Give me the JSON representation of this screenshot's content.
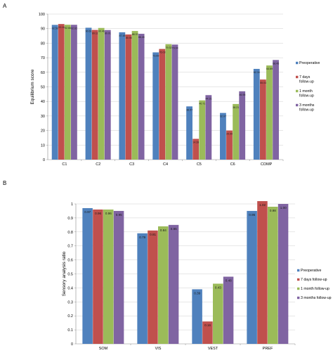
{
  "colors": {
    "preop": "#4f81bd",
    "d7": "#c0504d",
    "m1": "#9bbb59",
    "m3": "#8064a2",
    "grid": "#cfcfcf",
    "axis": "#8c8c8c"
  },
  "chart_data": [
    {
      "panel": "A",
      "type": "bar",
      "ylabel": "Equilibrium score",
      "ylim": [
        0,
        100
      ],
      "yticks": [
        "0",
        "10",
        "20",
        "30",
        "40",
        "50",
        "60",
        "70",
        "80",
        "90",
        "100"
      ],
      "categories": [
        "C1",
        "C2",
        "C3",
        "C4",
        "C5",
        "C6",
        "COMP"
      ],
      "legend": [
        "Preoperative",
        "7 days follow-up",
        "1 month follow-up",
        "3 months follow-up"
      ],
      "series": [
        {
          "name": "Preoperative",
          "values": [
            92.56,
            90.61,
            87.48,
            73.69,
            36.57,
            32.07,
            62.34
          ],
          "labels": [
            "92.56",
            "90.61",
            "87.48",
            "73.69",
            "36.57",
            "32.07",
            "62.34"
          ]
        },
        {
          "name": "7 days follow-up",
          "values": [
            93.16,
            89.11,
            85.98,
            76.03,
            14.28,
            20.0,
            55.03
          ],
          "labels": [
            "93.16",
            "89.11",
            "85.98",
            "76.03",
            "14.28",
            "20.00",
            "55.03"
          ]
        },
        {
          "name": "1 month follow-up",
          "values": [
            92.66,
            90.46,
            88.37,
            79.32,
            40.71,
            38.21,
            64.69
          ],
          "labels": [
            "92.66",
            "90.46",
            "88.37",
            "79.32",
            "40.71",
            "38.21",
            "64.69"
          ]
        },
        {
          "name": "3 months follow-up",
          "values": [
            92.62,
            89.01,
            86.45,
            79.04,
            44.31,
            46.95,
            68.45
          ],
          "labels": [
            "92.62",
            "89.01",
            "86.45",
            "79.04",
            "44.31",
            "46.95",
            "68.45"
          ]
        }
      ]
    },
    {
      "panel": "B",
      "type": "bar",
      "ylabel": "Sensory analysis ratio",
      "ylim": [
        0,
        1
      ],
      "yticks": [
        "0",
        "0.1",
        "0.2",
        "0.3",
        "0.4",
        "0.5",
        "0.6",
        "0.7",
        "0.8",
        "0.9",
        "1"
      ],
      "categories": [
        "SOM",
        "VIS",
        "VEST",
        "PREF"
      ],
      "legend": [
        "Preoperative",
        "7 days follow-up",
        "1 month follow-up",
        "3 months follow-up"
      ],
      "series": [
        {
          "name": "Preoperative",
          "values": [
            0.97,
            0.79,
            0.39,
            0.95
          ],
          "labels": [
            "0.97",
            "0.79",
            "0.39",
            "0.95"
          ]
        },
        {
          "name": "7 days follow-up",
          "values": [
            0.96,
            0.81,
            0.16,
            1.02
          ],
          "labels": [
            "0.96",
            "0.81",
            "0.16",
            "1.02"
          ]
        },
        {
          "name": "1 month follow-up",
          "values": [
            0.96,
            0.84,
            0.43,
            0.98
          ],
          "labels": [
            "0.96",
            "0.84",
            "0.43",
            "0.98"
          ]
        },
        {
          "name": "3 months follow-up",
          "values": [
            0.95,
            0.85,
            0.48,
            1.0
          ],
          "labels": [
            "0.95",
            "0.85",
            "0.48",
            "1.00"
          ]
        }
      ]
    }
  ]
}
